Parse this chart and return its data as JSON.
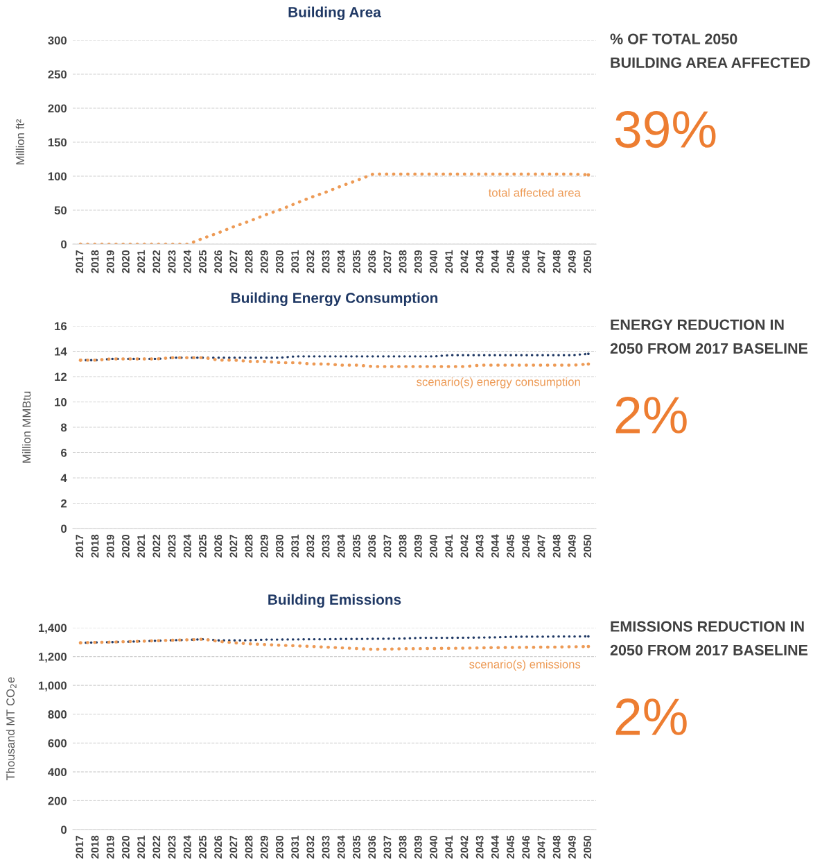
{
  "chart_data": [
    {
      "type": "line",
      "title": "Building Area",
      "ylabel": "Million ft²",
      "categories": [
        "2017",
        "2018",
        "2019",
        "2020",
        "2021",
        "2022",
        "2023",
        "2024",
        "2025",
        "2026",
        "2027",
        "2028",
        "2029",
        "2030",
        "2031",
        "2032",
        "2033",
        "2034",
        "2035",
        "2036",
        "2037",
        "2038",
        "2039",
        "2040",
        "2041",
        "2042",
        "2043",
        "2044",
        "2045",
        "2046",
        "2047",
        "2048",
        "2049",
        "2050"
      ],
      "ylim": [
        0,
        300
      ],
      "yticks": [
        0,
        50,
        100,
        150,
        200,
        250,
        300
      ],
      "grid": "y",
      "line_style": "dotted",
      "marker": "none",
      "legend": false,
      "series": [
        {
          "name": "total affected area",
          "color": "#ed9a55",
          "values": [
            0,
            0,
            0,
            0,
            0,
            0,
            0,
            0,
            9,
            17,
            26,
            34,
            43,
            51,
            60,
            69,
            77,
            86,
            94,
            103,
            103,
            103,
            103,
            103,
            103,
            103,
            103,
            103,
            103,
            103,
            103,
            103,
            103,
            102
          ]
        }
      ],
      "annotations": [
        "% OF TOTAL 2050 BUILDING AREA AFFECTED",
        "39%"
      ]
    },
    {
      "type": "line",
      "title": "Building Energy Consumption",
      "ylabel": "Million MMBtu",
      "categories": [
        "2017",
        "2018",
        "2019",
        "2020",
        "2021",
        "2022",
        "2023",
        "2024",
        "2025",
        "2026",
        "2027",
        "2028",
        "2029",
        "2030",
        "2031",
        "2032",
        "2033",
        "2034",
        "2035",
        "2036",
        "2037",
        "2038",
        "2039",
        "2040",
        "2041",
        "2042",
        "2043",
        "2044",
        "2045",
        "2046",
        "2047",
        "2048",
        "2049",
        "2050"
      ],
      "ylim": [
        0,
        16
      ],
      "yticks": [
        0,
        2,
        4,
        6,
        8,
        10,
        12,
        14,
        16
      ],
      "grid": "y",
      "line_style": "dotted",
      "marker": "none",
      "legend": false,
      "series": [
        {
          "color": "#1f3864",
          "values": [
            13.3,
            13.3,
            13.4,
            13.4,
            13.4,
            13.4,
            13.5,
            13.5,
            13.5,
            13.5,
            13.5,
            13.5,
            13.5,
            13.5,
            13.6,
            13.6,
            13.6,
            13.6,
            13.6,
            13.6,
            13.6,
            13.6,
            13.6,
            13.6,
            13.7,
            13.7,
            13.7,
            13.7,
            13.7,
            13.7,
            13.7,
            13.7,
            13.7,
            13.8
          ]
        },
        {
          "name": "scenario(s) energy consumption",
          "color": "#ed9a55",
          "values": [
            13.3,
            13.3,
            13.4,
            13.4,
            13.4,
            13.4,
            13.5,
            13.5,
            13.5,
            13.3,
            13.3,
            13.2,
            13.2,
            13.1,
            13.1,
            13.0,
            13.0,
            12.9,
            12.9,
            12.8,
            12.8,
            12.8,
            12.8,
            12.8,
            12.8,
            12.8,
            12.9,
            12.9,
            12.9,
            12.9,
            12.9,
            12.9,
            12.9,
            13.0
          ]
        }
      ],
      "annotations": [
        "ENERGY REDUCTION IN 2050 FROM 2017 BASELINE",
        "2%"
      ]
    },
    {
      "type": "line",
      "title": "Building Emissions",
      "ylabel": "Thousand MT CO$_{2}$e",
      "categories": [
        "2017",
        "2018",
        "2019",
        "2020",
        "2021",
        "2022",
        "2023",
        "2024",
        "2025",
        "2026",
        "2027",
        "2028",
        "2029",
        "2030",
        "2031",
        "2032",
        "2033",
        "2034",
        "2035",
        "2036",
        "2037",
        "2038",
        "2039",
        "2040",
        "2041",
        "2042",
        "2043",
        "2044",
        "2045",
        "2046",
        "2047",
        "2048",
        "2049",
        "2050"
      ],
      "ylim": [
        0,
        1400
      ],
      "yticks": [
        0,
        200,
        400,
        600,
        800,
        {
          "value": 1000,
          "label": "1,000"
        },
        {
          "value": 1200,
          "label": "1,200"
        },
        {
          "value": 1400,
          "label": "1,400"
        }
      ],
      "grid": "y",
      "line_style": "dotted",
      "marker": "none",
      "legend": false,
      "series": [
        {
          "color": "#1f3864",
          "values": [
            1295,
            1298,
            1300,
            1303,
            1306,
            1310,
            1313,
            1316,
            1320,
            1312,
            1312,
            1313,
            1318,
            1318,
            1319,
            1320,
            1320,
            1322,
            1322,
            1323,
            1324,
            1325,
            1330,
            1330,
            1330,
            1331,
            1332,
            1333,
            1337,
            1338,
            1338,
            1339,
            1339,
            1340
          ]
        },
        {
          "name": "scenario(s) emissions",
          "color": "#ed9a55",
          "values": [
            1295,
            1298,
            1300,
            1303,
            1306,
            1310,
            1313,
            1316,
            1320,
            1305,
            1295,
            1288,
            1283,
            1278,
            1274,
            1270,
            1265,
            1260,
            1255,
            1250,
            1252,
            1254,
            1255,
            1256,
            1257,
            1258,
            1260,
            1262,
            1263,
            1264,
            1265,
            1266,
            1268,
            1270
          ]
        }
      ],
      "annotations": [
        "EMISSIONS REDUCTION IN 2050 FROM 2017 BASELINE",
        "2%"
      ]
    }
  ]
}
